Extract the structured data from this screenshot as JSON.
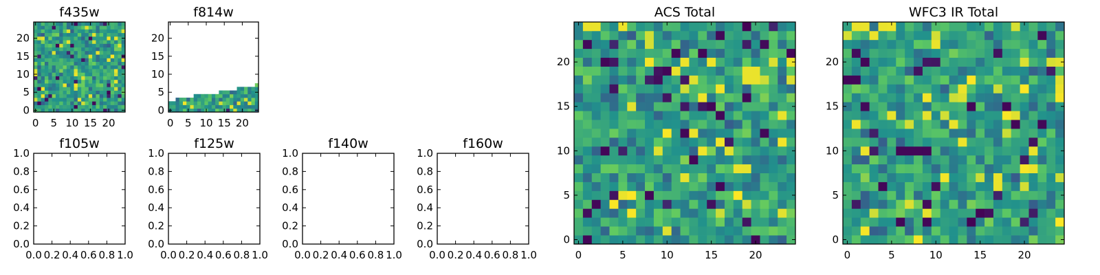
{
  "figure": {
    "background": "#ffffff",
    "colormap": "viridis",
    "colormap_stops": [
      "#440154",
      "#3b528b",
      "#21918c",
      "#5ec962",
      "#fde725"
    ]
  },
  "chart_data": [
    {
      "type": "heatmap",
      "title": "f435w",
      "xlim": [
        -0.5,
        24.5
      ],
      "ylim": [
        -0.5,
        24.5
      ],
      "x_ticks": [
        0,
        5,
        10,
        15,
        20
      ],
      "y_ticks": [
        0,
        5,
        10,
        15,
        20
      ],
      "grid_size": [
        25,
        25
      ],
      "pattern_seed": 11,
      "filled_rows": 25,
      "value_range": [
        0,
        1
      ]
    },
    {
      "type": "heatmap",
      "title": "f814w",
      "xlim": [
        -0.5,
        24.5
      ],
      "ylim": [
        -0.5,
        24.5
      ],
      "x_ticks": [
        0,
        5,
        10,
        15,
        20
      ],
      "y_ticks": [
        0,
        5,
        10,
        15,
        20
      ],
      "grid_size": [
        25,
        25
      ],
      "pattern_seed": 23,
      "filled_rows": "partial (rows filled up to about y = 2 at x = 0 rising to about y = 7 at x = 24; blank above)",
      "value_range": [
        0,
        1
      ]
    },
    {
      "type": "heatmap",
      "title": "f105w",
      "empty": true,
      "xlim": [
        0,
        1
      ],
      "ylim": [
        0,
        1
      ],
      "x_ticks": [
        "0.0",
        "0.2",
        "0.4",
        "0.6",
        "0.8",
        "1.0"
      ],
      "y_ticks": [
        "0.0",
        "0.2",
        "0.4",
        "0.6",
        "0.8",
        "1.0"
      ]
    },
    {
      "type": "heatmap",
      "title": "f125w",
      "empty": true,
      "xlim": [
        0,
        1
      ],
      "ylim": [
        0,
        1
      ],
      "x_ticks": [
        "0.0",
        "0.2",
        "0.4",
        "0.6",
        "0.8",
        "1.0"
      ],
      "y_ticks": [
        "0.0",
        "0.2",
        "0.4",
        "0.6",
        "0.8",
        "1.0"
      ]
    },
    {
      "type": "heatmap",
      "title": "f140w",
      "empty": true,
      "xlim": [
        0,
        1
      ],
      "ylim": [
        0,
        1
      ],
      "x_ticks": [
        "0.0",
        "0.2",
        "0.4",
        "0.6",
        "0.8",
        "1.0"
      ],
      "y_ticks": [
        "0.0",
        "0.2",
        "0.4",
        "0.6",
        "0.8",
        "1.0"
      ]
    },
    {
      "type": "heatmap",
      "title": "f160w",
      "empty": true,
      "xlim": [
        0,
        1
      ],
      "ylim": [
        0,
        1
      ],
      "x_ticks": [
        "0.0",
        "0.2",
        "0.4",
        "0.6",
        "0.8",
        "1.0"
      ],
      "y_ticks": [
        "0.0",
        "0.2",
        "0.4",
        "0.6",
        "0.8",
        "1.0"
      ]
    },
    {
      "type": "heatmap",
      "title": "ACS Total",
      "xlim": [
        -0.5,
        24.5
      ],
      "ylim": [
        -0.5,
        24.5
      ],
      "x_ticks": [
        0,
        5,
        10,
        15,
        20
      ],
      "y_ticks": [
        0,
        5,
        10,
        15,
        20
      ],
      "grid_size": [
        25,
        25
      ],
      "pattern_seed": 37,
      "filled_rows": 25,
      "value_range": [
        0,
        1
      ],
      "notable_cells": [
        {
          "x": 19,
          "y": 18,
          "level": "high"
        },
        {
          "x": 20,
          "y": 18,
          "level": "high"
        },
        {
          "x": 19,
          "y": 19,
          "level": "high"
        },
        {
          "x": 20,
          "y": 19,
          "level": "high"
        },
        {
          "x": 1,
          "y": 24,
          "level": "high"
        },
        {
          "x": 2,
          "y": 24,
          "level": "high"
        },
        {
          "x": 13,
          "y": 12,
          "level": "high"
        },
        {
          "x": 23,
          "y": 14,
          "level": "high"
        },
        {
          "x": 11,
          "y": 21,
          "level": "low"
        },
        {
          "x": 14,
          "y": 21,
          "level": "low"
        },
        {
          "x": 10,
          "y": 19,
          "level": "low"
        },
        {
          "x": 19,
          "y": 16,
          "level": "low"
        },
        {
          "x": 3,
          "y": 20,
          "level": "low"
        },
        {
          "x": 16,
          "y": 14,
          "level": "low"
        },
        {
          "x": 15,
          "y": 15,
          "level": "low"
        },
        {
          "x": 12,
          "y": 12,
          "level": "low"
        },
        {
          "x": 3,
          "y": 10,
          "level": "low"
        },
        {
          "x": 13,
          "y": 9,
          "level": "low"
        },
        {
          "x": 8,
          "y": 5,
          "level": "low"
        },
        {
          "x": 16,
          "y": 6,
          "level": "low"
        },
        {
          "x": 2,
          "y": 4,
          "level": "low"
        },
        {
          "x": 1,
          "y": 0,
          "level": "low"
        },
        {
          "x": 20,
          "y": 0,
          "level": "low"
        }
      ]
    },
    {
      "type": "heatmap",
      "title": "WFC3 IR Total",
      "xlim": [
        -0.5,
        24.5
      ],
      "ylim": [
        -0.5,
        24.5
      ],
      "x_ticks": [
        0,
        5,
        10,
        15,
        20
      ],
      "y_ticks": [
        0,
        5,
        10,
        15,
        20
      ],
      "grid_size": [
        25,
        25
      ],
      "pattern_seed": 53,
      "filled_rows": 25,
      "value_range": [
        0,
        1
      ],
      "notable_cells": [
        {
          "x": 0,
          "y": 18,
          "level": "low"
        },
        {
          "x": 1,
          "y": 18,
          "level": "low"
        },
        {
          "x": 22,
          "y": 23,
          "level": "low"
        },
        {
          "x": 14,
          "y": 15,
          "level": "low"
        },
        {
          "x": 2,
          "y": 20,
          "level": "low"
        },
        {
          "x": 6,
          "y": 10,
          "level": "low"
        },
        {
          "x": 7,
          "y": 10,
          "level": "low"
        },
        {
          "x": 8,
          "y": 10,
          "level": "low"
        },
        {
          "x": 9,
          "y": 10,
          "level": "low"
        },
        {
          "x": 6,
          "y": 2,
          "level": "low"
        },
        {
          "x": 9,
          "y": 2,
          "level": "low"
        },
        {
          "x": 22,
          "y": 13,
          "level": "low"
        },
        {
          "x": 4,
          "y": 6,
          "level": "low"
        },
        {
          "x": 18,
          "y": 15,
          "level": "low"
        },
        {
          "x": 19,
          "y": 13,
          "level": "low"
        },
        {
          "x": 1,
          "y": 24,
          "level": "high"
        },
        {
          "x": 2,
          "y": 24,
          "level": "high"
        },
        {
          "x": 3,
          "y": 23,
          "level": "high"
        },
        {
          "x": 4,
          "y": 24,
          "level": "high"
        },
        {
          "x": 10,
          "y": 22,
          "level": "high"
        },
        {
          "x": 13,
          "y": 17,
          "level": "high"
        },
        {
          "x": 17,
          "y": 7,
          "level": "high"
        },
        {
          "x": 17,
          "y": 6,
          "level": "high"
        },
        {
          "x": 21,
          "y": 8,
          "level": "high"
        },
        {
          "x": 21,
          "y": 10,
          "level": "high"
        },
        {
          "x": 12,
          "y": 13,
          "level": "high"
        }
      ]
    }
  ]
}
